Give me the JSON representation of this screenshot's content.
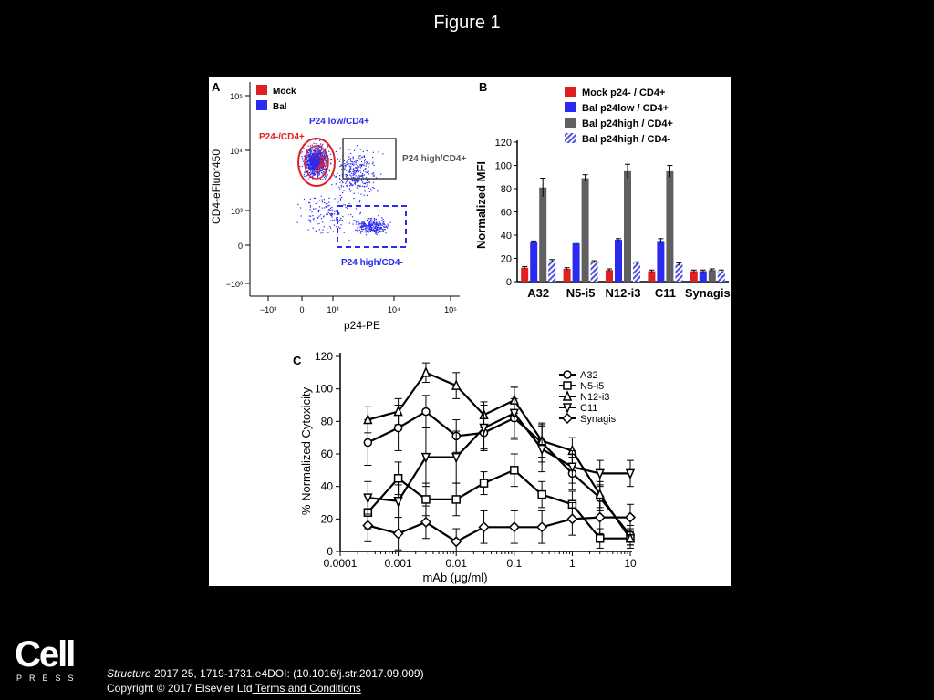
{
  "slide": {
    "title": "Figure 1"
  },
  "panel_a": {
    "label": "A",
    "legend": [
      {
        "name": "Mock",
        "color": "#e02020"
      },
      {
        "name": "Bal",
        "color": "#2a2af0"
      }
    ],
    "xlabel": "p24-PE",
    "ylabel": "CD4-eFluor450",
    "x_ticks": [
      "−10³",
      "0",
      "10³",
      "10⁴",
      "10⁵"
    ],
    "y_ticks": [
      "10⁵",
      "10⁴",
      "10³",
      "0",
      "−10³"
    ],
    "gates": {
      "p24_neg_cd4_pos": "P24-/CD4+",
      "p24_low_cd4_pos": "P24 low/CD4+",
      "p24_high_cd4_pos": "P24 high/CD4+",
      "p24_high_cd4_neg": "P24 high/CD4-"
    }
  },
  "panel_b": {
    "label": "B",
    "chart_data": {
      "type": "bar",
      "ylabel": "Normalized MFI",
      "ylim": [
        0,
        120
      ],
      "y_ticks": [
        0,
        20,
        40,
        60,
        80,
        100,
        120
      ],
      "categories": [
        "A32",
        "N5-i5",
        "N12-i3",
        "C11",
        "Synagis"
      ],
      "series": [
        {
          "name": "Mock p24- / CD4+",
          "color": "#e02020",
          "values": [
            12,
            11,
            10,
            9,
            9
          ],
          "errors": [
            1,
            1,
            1,
            1,
            1
          ]
        },
        {
          "name": "Bal p24low / CD4+",
          "color": "#2a2af0",
          "values": [
            34,
            33,
            36,
            35,
            9
          ],
          "errors": [
            1,
            1,
            1,
            2,
            1
          ]
        },
        {
          "name": "Bal p24high / CD4+",
          "color": "#606060",
          "values": [
            81,
            89,
            95,
            95,
            10
          ],
          "errors": [
            8,
            3,
            6,
            5,
            1
          ]
        },
        {
          "name": "Bal p24high / CD4-",
          "color": "#5050e0",
          "pattern": "hatched",
          "values": [
            18,
            17,
            16,
            15,
            9
          ],
          "errors": [
            1,
            1,
            1,
            1,
            1
          ]
        }
      ]
    }
  },
  "panel_c": {
    "label": "C",
    "chart_data": {
      "type": "line",
      "xlabel": "mAb (μg/ml)",
      "ylabel": "% Normalized Cytoxicity",
      "x_scale": "log",
      "xlim": [
        0.0001,
        10
      ],
      "ylim": [
        0,
        120
      ],
      "x_ticks": [
        "0.0001",
        "0.001",
        "0.01",
        "0.1",
        "1",
        "10"
      ],
      "y_ticks": [
        0,
        20,
        40,
        60,
        80,
        100,
        120
      ],
      "x": [
        0.0003,
        0.001,
        0.003,
        0.01,
        0.03,
        0.1,
        0.3,
        1,
        3,
        10
      ],
      "series": [
        {
          "name": "A32",
          "marker": "circle",
          "values": [
            67,
            76,
            86,
            71,
            73,
            82,
            67,
            48,
            33,
            10
          ],
          "errors": [
            14,
            14,
            10,
            10,
            10,
            12,
            12,
            10,
            8,
            6
          ]
        },
        {
          "name": "N5-i5",
          "marker": "square",
          "values": [
            24,
            45,
            32,
            32,
            42,
            50,
            35,
            29,
            8,
            8
          ],
          "errors": [
            10,
            10,
            10,
            10,
            7,
            10,
            8,
            8,
            6,
            4
          ]
        },
        {
          "name": "N12-i3",
          "marker": "triangle-up",
          "values": [
            81,
            86,
            110,
            102,
            84,
            93,
            68,
            62,
            35,
            8
          ],
          "errors": [
            8,
            8,
            6,
            8,
            8,
            8,
            10,
            8,
            8,
            6
          ]
        },
        {
          "name": "C11",
          "marker": "triangle-down",
          "values": [
            33,
            31,
            58,
            58,
            76,
            85,
            63,
            52,
            48,
            48
          ],
          "errors": [
            10,
            10,
            18,
            16,
            14,
            16,
            14,
            10,
            8,
            8
          ]
        },
        {
          "name": "Synagis",
          "marker": "diamond",
          "values": [
            16,
            11,
            18,
            6,
            15,
            15,
            15,
            20,
            21,
            21
          ],
          "errors": [
            10,
            10,
            10,
            8,
            10,
            10,
            10,
            10,
            10,
            8
          ]
        }
      ]
    }
  },
  "citation": {
    "journal": "Structure",
    "ref": " 2017 25, 1719-1731.e4DOI: (10.1016/j.str.2017.09.009)",
    "copyright": "Copyright © 2017 Elsevier Ltd",
    "link": " Terms and Conditions"
  },
  "logo": {
    "word": "Cell",
    "press": "PRESS"
  }
}
